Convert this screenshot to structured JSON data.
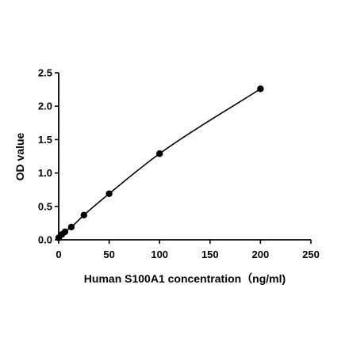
{
  "chart_data": {
    "type": "scatter",
    "title": "",
    "xlabel": "Human S100A1 concentration（ng/ml)",
    "ylabel": "OD value",
    "xlim": [
      0,
      250
    ],
    "ylim": [
      0,
      2.5
    ],
    "xticks": [
      "0",
      "50",
      "100",
      "150",
      "200",
      "250"
    ],
    "yticks": [
      "0.0",
      "0.5",
      "1.0",
      "1.5",
      "2.0",
      "2.5"
    ],
    "grid": false,
    "legend": "none",
    "fit_curve": true,
    "series": [
      {
        "x": [
          0,
          3.125,
          6.25,
          12.5,
          25,
          50,
          100,
          200
        ],
        "y": [
          0.03,
          0.08,
          0.12,
          0.19,
          0.37,
          0.69,
          1.29,
          2.26
        ]
      }
    ],
    "colors": {
      "marker": "#000000",
      "curve": "#000000",
      "axis": "#000000"
    }
  }
}
